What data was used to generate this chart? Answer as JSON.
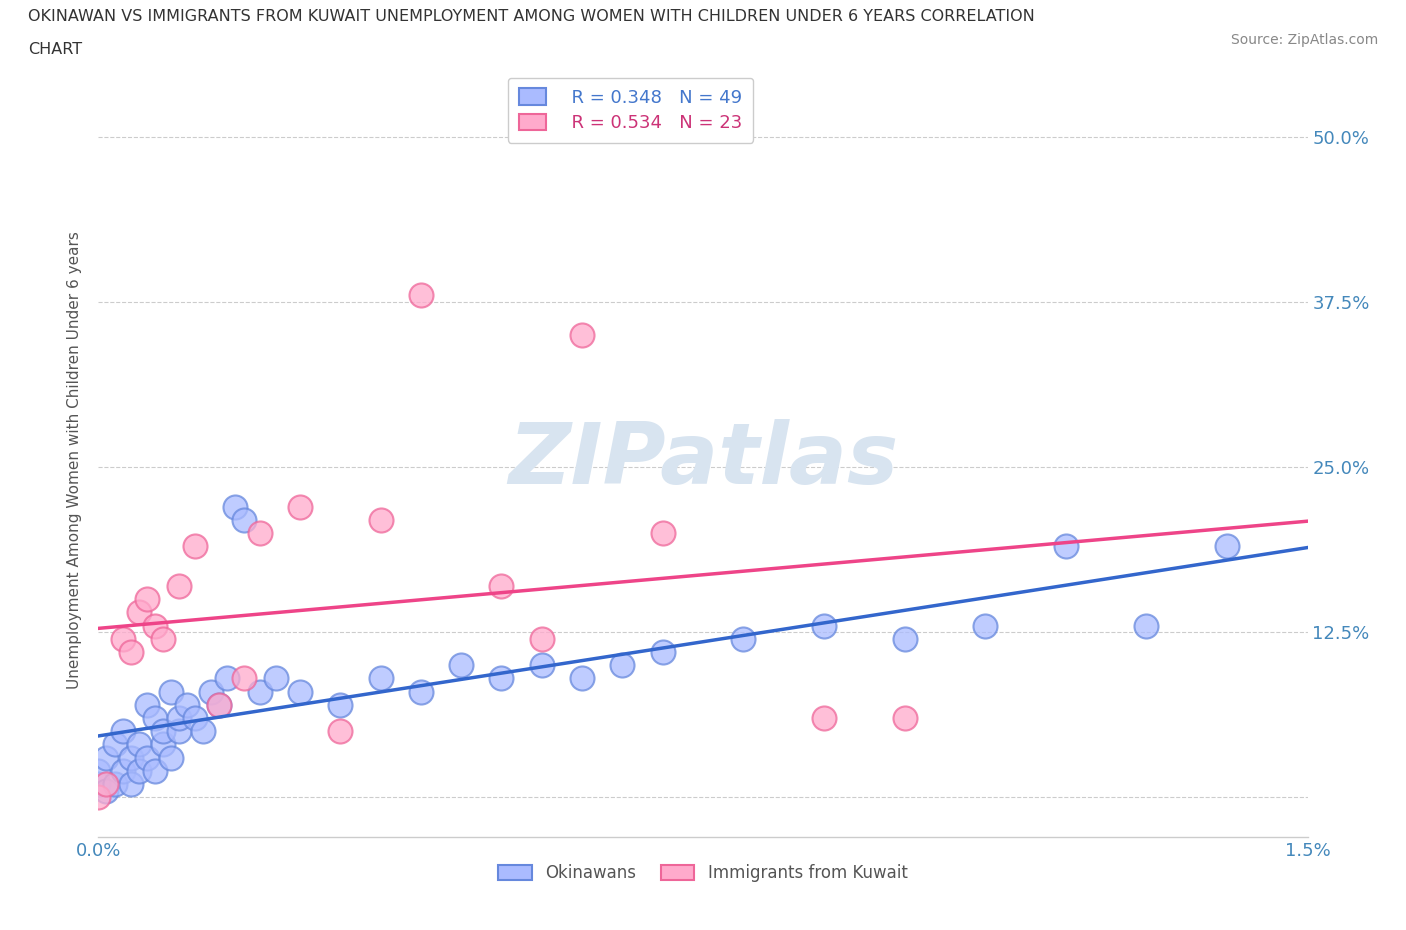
{
  "title_line1": "OKINAWAN VS IMMIGRANTS FROM KUWAIT UNEMPLOYMENT AMONG WOMEN WITH CHILDREN UNDER 6 YEARS CORRELATION",
  "title_line2": "CHART",
  "source_text": "Source: ZipAtlas.com",
  "ylabel": "Unemployment Among Women with Children Under 6 years",
  "xlim": [
    0.0,
    0.015
  ],
  "ylim": [
    -0.03,
    0.54
  ],
  "xticks": [
    0.0,
    0.003,
    0.006,
    0.009,
    0.012,
    0.015
  ],
  "xticklabels": [
    "0.0%",
    "",
    "",
    "",
    "",
    "1.5%"
  ],
  "yticks": [
    0.0,
    0.125,
    0.25,
    0.375,
    0.5
  ],
  "yticklabels": [
    "",
    "12.5%",
    "25.0%",
    "37.5%",
    "50.0%"
  ],
  "blue_fill": "#aabbff",
  "blue_border": "#6688dd",
  "pink_fill": "#ffaacc",
  "pink_border": "#ee6699",
  "blue_line_color": "#3366cc",
  "pink_line_color": "#ee4488",
  "watermark_color": "#d8e4f0",
  "background_color": "#ffffff",
  "grid_color": "#cccccc",
  "legend_r1": "R = 0.348",
  "legend_n1": "N = 49",
  "legend_r2": "R = 0.534",
  "legend_n2": "N = 23",
  "legend_text_blue": "#4477cc",
  "legend_text_pink": "#cc3377",
  "okinawan_label": "Okinawans",
  "kuwait_label": "Immigrants from Kuwait",
  "okinawan_x": [
    0.0,
    0.0,
    0.0001,
    0.0001,
    0.0002,
    0.0002,
    0.0003,
    0.0003,
    0.0004,
    0.0004,
    0.0005,
    0.0005,
    0.0006,
    0.0006,
    0.0007,
    0.0007,
    0.0008,
    0.0008,
    0.0009,
    0.0009,
    0.001,
    0.001,
    0.0011,
    0.0012,
    0.0013,
    0.0014,
    0.0015,
    0.0016,
    0.0017,
    0.0018,
    0.002,
    0.0022,
    0.0025,
    0.003,
    0.0035,
    0.004,
    0.0045,
    0.005,
    0.0055,
    0.006,
    0.0065,
    0.007,
    0.008,
    0.009,
    0.01,
    0.011,
    0.012,
    0.013,
    0.014
  ],
  "okinawan_y": [
    0.01,
    0.02,
    0.005,
    0.03,
    0.01,
    0.04,
    0.02,
    0.05,
    0.01,
    0.03,
    0.02,
    0.04,
    0.03,
    0.07,
    0.02,
    0.06,
    0.04,
    0.05,
    0.03,
    0.08,
    0.05,
    0.06,
    0.07,
    0.06,
    0.05,
    0.08,
    0.07,
    0.09,
    0.22,
    0.21,
    0.08,
    0.09,
    0.08,
    0.07,
    0.09,
    0.08,
    0.1,
    0.09,
    0.1,
    0.09,
    0.1,
    0.11,
    0.12,
    0.13,
    0.12,
    0.13,
    0.19,
    0.13,
    0.19
  ],
  "kuwait_x": [
    0.0,
    0.0001,
    0.0003,
    0.0004,
    0.0005,
    0.0006,
    0.0007,
    0.0008,
    0.001,
    0.0012,
    0.0015,
    0.0018,
    0.002,
    0.0025,
    0.003,
    0.0035,
    0.004,
    0.005,
    0.0055,
    0.006,
    0.007,
    0.009,
    0.01
  ],
  "kuwait_y": [
    0.0,
    0.01,
    0.12,
    0.11,
    0.14,
    0.15,
    0.13,
    0.12,
    0.16,
    0.19,
    0.07,
    0.09,
    0.2,
    0.22,
    0.05,
    0.21,
    0.38,
    0.16,
    0.12,
    0.35,
    0.2,
    0.06,
    0.06
  ]
}
